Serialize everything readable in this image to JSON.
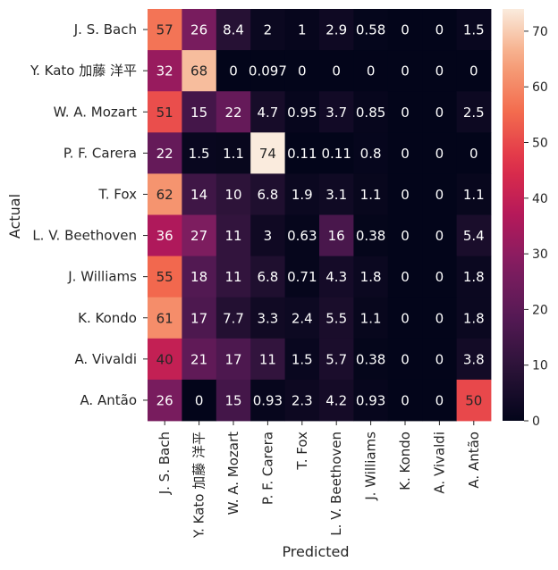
{
  "chart_data": {
    "type": "heatmap",
    "title": "",
    "xlabel": "Predicted",
    "ylabel": "Actual",
    "x_categories": [
      "J. S. Bach",
      "Y. Kato 加藤 洋平",
      "W. A. Mozart",
      "P. F. Carera",
      "T. Fox",
      "L. V. Beethoven",
      "J. Williams",
      "K. Kondo",
      "A. Vivaldi",
      "A. Antão"
    ],
    "y_categories": [
      "J. S. Bach",
      "Y. Kato 加藤 洋平",
      "W. A. Mozart",
      "P. F. Carera",
      "T. Fox",
      "L. V. Beethoven",
      "J. Williams",
      "K. Kondo",
      "A. Vivaldi",
      "A. Antão"
    ],
    "values": [
      [
        57,
        26,
        8.4,
        2,
        1,
        2.9,
        0.58,
        0,
        0,
        1.5
      ],
      [
        32,
        68,
        0,
        0.097,
        0,
        0,
        0,
        0,
        0,
        0
      ],
      [
        51,
        15,
        22,
        4.7,
        0.95,
        3.7,
        0.85,
        0,
        0,
        2.5
      ],
      [
        22,
        1.5,
        1.1,
        74,
        0.11,
        0.11,
        0.8,
        0,
        0,
        0
      ],
      [
        62,
        14,
        10,
        6.8,
        1.9,
        3.1,
        1.1,
        0,
        0,
        1.1
      ],
      [
        36,
        27,
        11,
        3,
        0.63,
        16,
        0.38,
        0,
        0,
        5.4
      ],
      [
        55,
        18,
        11,
        6.8,
        0.71,
        4.3,
        1.8,
        0,
        0,
        1.8
      ],
      [
        61,
        17,
        7.7,
        3.3,
        2.4,
        5.5,
        1.1,
        0,
        0,
        1.8
      ],
      [
        40,
        21,
        17,
        11,
        1.5,
        5.7,
        0.38,
        0,
        0,
        3.8
      ],
      [
        26,
        0,
        15,
        0.93,
        2.3,
        4.2,
        0.93,
        0,
        0,
        50
      ]
    ],
    "value_labels": [
      [
        "57",
        "26",
        "8.4",
        "2",
        "1",
        "2.9",
        "0.58",
        "0",
        "0",
        "1.5"
      ],
      [
        "32",
        "68",
        "0",
        "0.097",
        "0",
        "0",
        "0",
        "0",
        "0",
        "0"
      ],
      [
        "51",
        "15",
        "22",
        "4.7",
        "0.95",
        "3.7",
        "0.85",
        "0",
        "0",
        "2.5"
      ],
      [
        "22",
        "1.5",
        "1.1",
        "74",
        "0.11",
        "0.11",
        "0.8",
        "0",
        "0",
        "0"
      ],
      [
        "62",
        "14",
        "10",
        "6.8",
        "1.9",
        "3.1",
        "1.1",
        "0",
        "0",
        "1.1"
      ],
      [
        "36",
        "27",
        "11",
        "3",
        "0.63",
        "16",
        "0.38",
        "0",
        "0",
        "5.4"
      ],
      [
        "55",
        "18",
        "11",
        "6.8",
        "0.71",
        "4.3",
        "1.8",
        "0",
        "0",
        "1.8"
      ],
      [
        "61",
        "17",
        "7.7",
        "3.3",
        "2.4",
        "5.5",
        "1.1",
        "0",
        "0",
        "1.8"
      ],
      [
        "40",
        "21",
        "17",
        "11",
        "1.5",
        "5.7",
        "0.38",
        "0",
        "0",
        "3.8"
      ],
      [
        "26",
        "0",
        "15",
        "0.93",
        "2.3",
        "4.2",
        "0.93",
        "0",
        "0",
        "50"
      ]
    ],
    "color_range": [
      0,
      74
    ],
    "colorbar_ticks": [
      0,
      10,
      20,
      30,
      40,
      50,
      60,
      70
    ],
    "colormap": "rocket",
    "legend": "right"
  }
}
